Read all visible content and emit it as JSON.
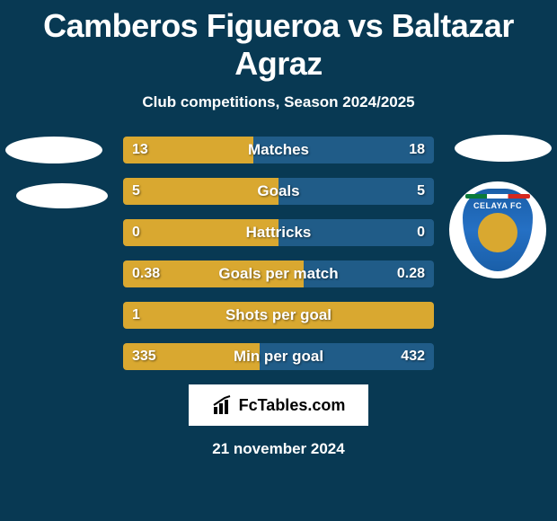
{
  "title": "Camberos Figueroa vs Baltazar Agraz",
  "subtitle": "Club competitions, Season 2024/2025",
  "footer_brand": "FcTables.com",
  "date": "21 november 2024",
  "colors": {
    "background": "#083953",
    "left_bar": "#d9a830",
    "right_bar": "#205c88",
    "badge_bg": "#ffffff",
    "club_badge_main": "#1a5fa8",
    "club_badge_accent": "#d9a830",
    "text": "#ffffff"
  },
  "club_badge_label": "CELAYA FC",
  "stats": [
    {
      "label": "Matches",
      "left_val": "13",
      "right_val": "18",
      "left_pct": 42,
      "right_pct": 58
    },
    {
      "label": "Goals",
      "left_val": "5",
      "right_val": "5",
      "left_pct": 50,
      "right_pct": 50
    },
    {
      "label": "Hattricks",
      "left_val": "0",
      "right_val": "0",
      "left_pct": 50,
      "right_pct": 50
    },
    {
      "label": "Goals per match",
      "left_val": "0.38",
      "right_val": "0.28",
      "left_pct": 58,
      "right_pct": 42
    },
    {
      "label": "Shots per goal",
      "left_val": "1",
      "right_val": "",
      "left_pct": 100,
      "right_pct": 0
    },
    {
      "label": "Min per goal",
      "left_val": "335",
      "right_val": "432",
      "left_pct": 44,
      "right_pct": 56
    }
  ]
}
